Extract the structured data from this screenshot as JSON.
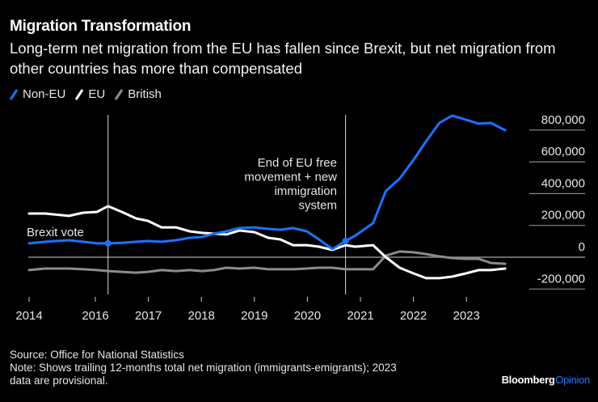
{
  "header": {
    "title": "Migration Transformation",
    "subtitle": "Long-term net migration from the EU has fallen since Brexit, but net migration from other countries has more than compensated"
  },
  "footer": {
    "source": "Source: Office for National Statistics",
    "note_line1": "Note: Shows trailing 12-months total net migration (immigrants-emigrants); 2023",
    "note_line2": "data are provisional.",
    "brand_main": "Bloomberg",
    "brand_accent": "Opinion"
  },
  "colors": {
    "non_eu": "#1a73ff",
    "eu": "#ffffff",
    "british": "#8c8c8c",
    "grid": "#8c8c8c",
    "background": "#000000",
    "brand_accent": "#1e78ff"
  },
  "chart_data": {
    "type": "line",
    "title": "Migration Transformation",
    "xlabel": "",
    "ylabel": "",
    "ylim": [
      -200000,
      800000
    ],
    "xlim": [
      2014.7,
      2023.8
    ],
    "x_ticks": [
      2014.75,
      2016,
      2017,
      2018,
      2019,
      2020,
      2021,
      2022,
      2023
    ],
    "x_tick_labels": [
      "2014",
      "2016",
      "2017",
      "2018",
      "2019",
      "2020",
      "2021",
      "2022",
      "2023"
    ],
    "y_ticks": [
      800000,
      600000,
      400000,
      200000,
      0,
      -200000
    ],
    "y_tick_labels": [
      "800,000",
      "600,000",
      "400,000",
      "200,000",
      "0",
      "-200,000"
    ],
    "y_axis_side": "right",
    "grid": false,
    "legend": {
      "placement": "top-left",
      "entries": [
        "Non-EU",
        "EU",
        "British"
      ]
    },
    "x": [
      2014.75,
      2015.05,
      2015.5,
      2015.77,
      2016.03,
      2016.24,
      2016.5,
      2016.77,
      2016.99,
      2017.25,
      2017.52,
      2017.78,
      2018.01,
      2018.24,
      2018.47,
      2018.72,
      2019.0,
      2019.26,
      2019.49,
      2019.73,
      2019.99,
      2020.22,
      2020.47,
      2020.72,
      2020.9,
      2021.24,
      2021.48,
      2021.74,
      2022.0,
      2022.24,
      2022.49,
      2022.73,
      2022.99,
      2023.23,
      2023.46,
      2023.73
    ],
    "series": [
      {
        "name": "Non-EU",
        "color": "#1a73ff",
        "values": [
          87000,
          97000,
          107000,
          97000,
          87000,
          87000,
          90000,
          97000,
          102000,
          97000,
          107000,
          122000,
          127000,
          148000,
          163000,
          183000,
          188000,
          178000,
          173000,
          183000,
          163000,
          112000,
          51000,
          102000,
          135000,
          214000,
          417000,
          494000,
          611000,
          730000,
          845000,
          891000,
          865000,
          840000,
          845000,
          799000
        ]
      },
      {
        "name": "EU",
        "color": "#ffffff",
        "values": [
          275000,
          275000,
          260000,
          280000,
          285000,
          321000,
          285000,
          244000,
          229000,
          188000,
          188000,
          163000,
          153000,
          148000,
          143000,
          168000,
          158000,
          122000,
          112000,
          76000,
          76000,
          66000,
          46000,
          76000,
          66000,
          76000,
          0,
          -66000,
          -102000,
          -132000,
          -132000,
          -122000,
          -102000,
          -81000,
          -81000,
          -71000
        ]
      },
      {
        "name": "British",
        "color": "#8c8c8c",
        "values": [
          -81000,
          -71000,
          -71000,
          -76000,
          -81000,
          -87000,
          -92000,
          -97000,
          -92000,
          -81000,
          -87000,
          -81000,
          -87000,
          -81000,
          -66000,
          -71000,
          -66000,
          -76000,
          -76000,
          -76000,
          -71000,
          -66000,
          -66000,
          -76000,
          -76000,
          -76000,
          10000,
          36000,
          31000,
          20000,
          5000,
          -5000,
          -10000,
          -10000,
          -36000,
          -41000
        ]
      }
    ],
    "annotations": [
      {
        "x": 2016.24,
        "label": "Brexit vote",
        "marker_series": "Non-EU"
      },
      {
        "x": 2020.72,
        "label_lines": [
          "End of EU free",
          "movement + new",
          "immigration",
          "system"
        ],
        "marker_series": "Non-EU"
      }
    ]
  }
}
